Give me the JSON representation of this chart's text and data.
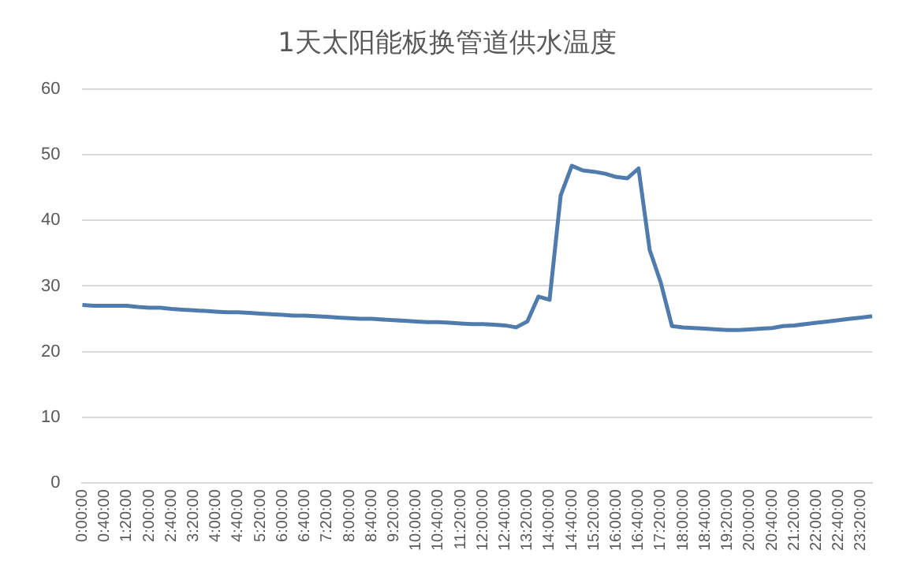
{
  "chart_data": {
    "type": "line",
    "title": "1天太阳能板换管道供水温度",
    "categories": [
      "0:00:00",
      null,
      "0:40:00",
      null,
      "1:20:00",
      null,
      "2:00:00",
      null,
      "2:40:00",
      null,
      "3:20:00",
      null,
      "4:00:00",
      null,
      "4:40:00",
      null,
      "5:20:00",
      null,
      "6:00:00",
      null,
      "6:40:00",
      null,
      "7:20:00",
      null,
      "8:00:00",
      null,
      "8:40:00",
      null,
      "9:20:00",
      null,
      "10:00:00",
      null,
      "10:40:00",
      null,
      "11:20:00",
      null,
      "12:00:00",
      null,
      "12:40:00",
      null,
      "13:20:00",
      null,
      "14:00:00",
      null,
      "14:40:00",
      null,
      "15:20:00",
      null,
      "16:00:00",
      null,
      "16:40:00",
      null,
      "17:20:00",
      null,
      "18:00:00",
      null,
      "18:40:00",
      null,
      "19:20:00",
      null,
      "20:00:00",
      null,
      "20:40:00",
      null,
      "21:20:00",
      null,
      "22:00:00",
      null,
      "22:40:00",
      null,
      "23:20:00",
      null
    ],
    "series": [
      {
        "color": "#4f7cad",
        "values": [
          27.1,
          27.0,
          27.0,
          27.0,
          27.0,
          26.8,
          26.7,
          26.7,
          26.5,
          26.4,
          26.3,
          26.2,
          26.1,
          26.0,
          26.0,
          25.9,
          25.8,
          25.7,
          25.6,
          25.5,
          25.5,
          25.4,
          25.3,
          25.2,
          25.1,
          25.0,
          25.0,
          24.9,
          24.8,
          24.7,
          24.6,
          24.5,
          24.5,
          24.4,
          24.3,
          24.2,
          24.2,
          24.1,
          24.0,
          23.7,
          24.6,
          28.4,
          27.9,
          43.8,
          48.3,
          47.6,
          47.4,
          47.1,
          46.6,
          46.4,
          47.9,
          35.5,
          30.5,
          23.9,
          23.7,
          23.6,
          23.5,
          23.4,
          23.3,
          23.3,
          23.4,
          23.5,
          23.6,
          23.9,
          24.0,
          24.2,
          24.4,
          24.6,
          24.8,
          25.0,
          25.2,
          25.4
        ]
      }
    ],
    "ylim": [
      0,
      60
    ],
    "yticks": [
      0,
      10,
      20,
      30,
      40,
      50,
      60
    ],
    "grid": "y",
    "legend": false,
    "marker": "none",
    "line_style": "solid"
  }
}
